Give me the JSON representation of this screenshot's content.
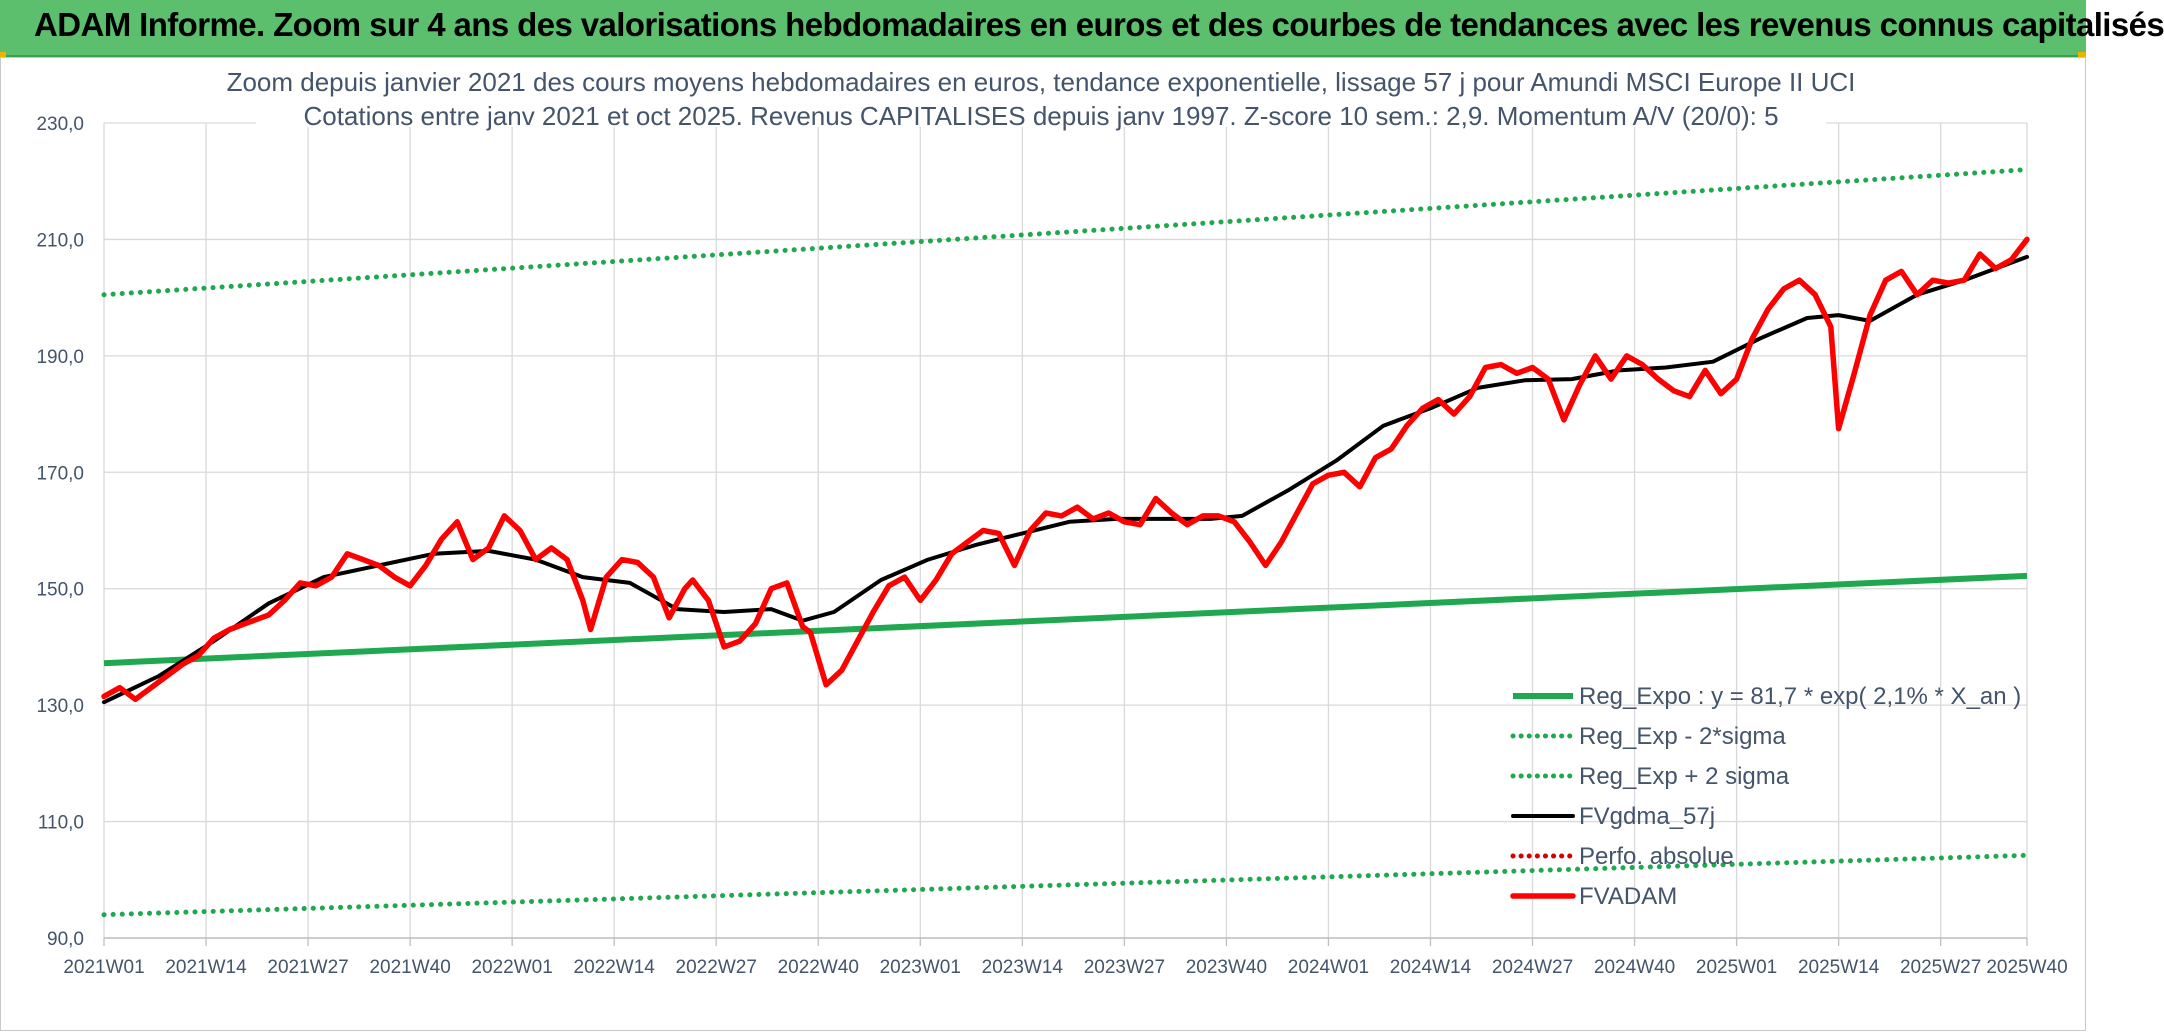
{
  "page_title": "ADAM Informe. Zoom sur 4 ans des valorisations hebdomadaires en euros et des courbes de tendances avec les revenus connus capitalisés",
  "colors": {
    "title_bar": "#5bbf6e",
    "reg_green": "#1fa84f",
    "dotted_green": "#1fa84f",
    "smooth_black": "#000000",
    "fvadam_red": "#ff0000",
    "perfo_red": "#d20000",
    "axis_text": "#44546a",
    "grid": "#d9d9d9"
  },
  "chart_data": {
    "type": "line",
    "title": "Zoom depuis janvier 2021 des cours moyens hebdomadaires en euros, tendance exponentielle, lissage 57 j pour Amundi MSCI Europe II UCI",
    "subtitle": "Cotations entre janv 2021 et oct 2025. Revenus CAPITALISES depuis janv 1997. Z-score 10 sem.: 2,9. Momentum A/V (20/0): 5",
    "ylim": [
      90,
      230
    ],
    "yticks": [
      "230,0",
      "210,0",
      "190,0",
      "170,0",
      "150,0",
      "130,0",
      "110,0",
      "90,0"
    ],
    "ytick_values": [
      230,
      210,
      190,
      170,
      150,
      130,
      110,
      90
    ],
    "xlim": [
      1,
      246
    ],
    "xtick_labels": [
      "2021W01",
      "2021W14",
      "2021W27",
      "2021W40",
      "2022W01",
      "2022W14",
      "2022W27",
      "2022W40",
      "2023W01",
      "2023W14",
      "2023W27",
      "2023W40",
      "2024W01",
      "2024W14",
      "2024W27",
      "2024W40",
      "2025W01",
      "2025W14",
      "2025W27",
      "2025W40"
    ],
    "xtick_positions": [
      1,
      14,
      27,
      40,
      53,
      66,
      79,
      92,
      105,
      118,
      131,
      144,
      157,
      170,
      183,
      196,
      209,
      222,
      235,
      246
    ],
    "grid": "horizontal and vertical",
    "legend_position": "bottom-right",
    "series": [
      {
        "name": "Reg_Expo : y = 81,7 * exp( 2,1% *  X_an )",
        "style": "solid-thick",
        "color": "#1fa84f",
        "x": [
          1,
          246
        ],
        "values": [
          137.2,
          152.2
        ]
      },
      {
        "name": "Reg_Exp - 2*sigma",
        "style": "dotted",
        "color": "#1fa84f",
        "x": [
          1,
          246
        ],
        "values": [
          94.0,
          104.2
        ]
      },
      {
        "name": "Reg_Exp + 2 sigma",
        "style": "dotted",
        "color": "#1fa84f",
        "x": [
          1,
          246
        ],
        "values": [
          200.5,
          222.0
        ]
      },
      {
        "name": "FVgdma_57j",
        "style": "solid",
        "color": "#000000",
        "x": [
          1,
          8,
          15,
          22,
          29,
          36,
          43,
          50,
          56,
          62,
          68,
          74,
          80,
          86,
          90,
          94,
          100,
          106,
          112,
          118,
          124,
          130,
          136,
          142,
          146,
          152,
          158,
          164,
          170,
          176,
          182,
          188,
          194,
          200,
          206,
          212,
          218,
          222,
          226,
          232,
          238,
          246
        ],
        "values": [
          130.5,
          135.0,
          141.0,
          147.5,
          152.0,
          154.0,
          156.0,
          156.5,
          155.0,
          152.0,
          151.0,
          146.5,
          146.0,
          146.5,
          144.5,
          146.0,
          151.5,
          155.0,
          157.5,
          159.5,
          161.5,
          162.0,
          162.0,
          162.0,
          162.5,
          167.0,
          172.0,
          178.0,
          181.0,
          184.5,
          185.8,
          186.0,
          187.5,
          188.0,
          189.0,
          193.0,
          196.5,
          197.0,
          196.0,
          200.5,
          203.0,
          207.0
        ]
      },
      {
        "name": "Perfo. absolue",
        "style": "dotted",
        "color": "#d20000",
        "x": [],
        "values": []
      },
      {
        "name": "FVADAM",
        "style": "solid-thick",
        "color": "#ff0000",
        "x": [
          1,
          3,
          5,
          7,
          9,
          11,
          13,
          15,
          17,
          19,
          22,
          24,
          26,
          28,
          30,
          32,
          34,
          36,
          38,
          40,
          42,
          44,
          46,
          48,
          50,
          52,
          54,
          56,
          58,
          60,
          62,
          63,
          65,
          67,
          69,
          71,
          73,
          75,
          76,
          78,
          80,
          82,
          84,
          86,
          88,
          90,
          91,
          93,
          95,
          97,
          99,
          101,
          103,
          105,
          107,
          109,
          111,
          113,
          115,
          117,
          119,
          121,
          123,
          125,
          127,
          129,
          131,
          133,
          135,
          137,
          139,
          141,
          143,
          145,
          147,
          149,
          151,
          153,
          155,
          157,
          159,
          161,
          163,
          165,
          167,
          169,
          171,
          173,
          175,
          177,
          179,
          181,
          183,
          185,
          187,
          189,
          191,
          193,
          195,
          197,
          199,
          201,
          203,
          205,
          207,
          209,
          211,
          213,
          215,
          217,
          219,
          221,
          222,
          224,
          226,
          228,
          230,
          232,
          234,
          236,
          238,
          240,
          242,
          244,
          246
        ],
        "values": [
          131.5,
          133.0,
          131.0,
          133.0,
          135.0,
          137.0,
          138.5,
          141.5,
          143.0,
          144.0,
          145.5,
          148.0,
          151.0,
          150.5,
          152.0,
          156.0,
          155.0,
          154.0,
          152.0,
          150.5,
          154.0,
          158.5,
          161.5,
          155.0,
          157.0,
          162.5,
          160.0,
          155.0,
          157.0,
          155.0,
          148.0,
          143.0,
          152.0,
          155.0,
          154.5,
          152.0,
          145.0,
          150.0,
          151.5,
          148.0,
          140.0,
          141.0,
          144.0,
          150.0,
          151.0,
          143.5,
          142.5,
          133.5,
          136.0,
          141.0,
          146.0,
          150.5,
          152.0,
          148.0,
          151.5,
          156.0,
          158.0,
          160.0,
          159.5,
          154.0,
          160.0,
          163.0,
          162.5,
          164.0,
          162.0,
          163.0,
          161.5,
          161.0,
          165.5,
          163.0,
          161.0,
          162.5,
          162.5,
          161.5,
          158.0,
          154.0,
          158.0,
          163.0,
          168.0,
          169.5,
          170.0,
          167.5,
          172.5,
          174.0,
          178.0,
          181.0,
          182.5,
          180.0,
          183.0,
          188.0,
          188.5,
          187.0,
          188.0,
          186.0,
          179.0,
          185.0,
          190.0,
          186.0,
          190.0,
          188.5,
          186.0,
          184.0,
          183.0,
          187.5,
          183.5,
          186.0,
          193.0,
          198.0,
          201.5,
          203.0,
          200.5,
          195.0,
          177.5,
          187.0,
          197.0,
          203.0,
          204.5,
          200.5,
          203.0,
          202.5,
          203.0,
          207.5,
          205.0,
          206.5,
          210.0
        ]
      }
    ]
  }
}
